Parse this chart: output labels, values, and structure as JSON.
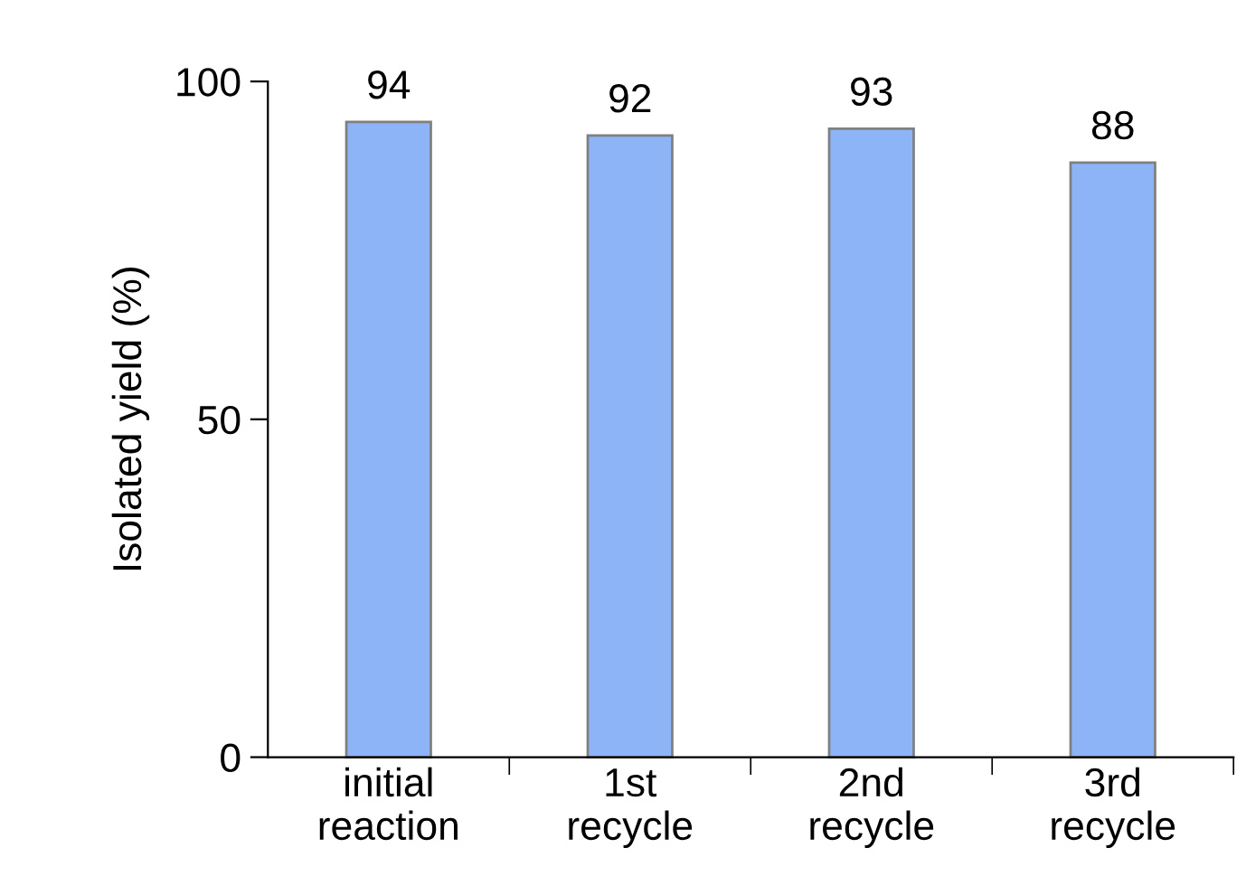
{
  "chart_data": {
    "type": "bar",
    "ylabel": "Isolated yield (%)",
    "categories": [
      "initial\nreaction",
      "1st\nrecycle",
      "2nd\nrecycle",
      "3rd\nrecycle"
    ],
    "values": [
      94,
      92,
      93,
      88
    ],
    "color": "#8db4f6",
    "ylim": [
      0,
      100
    ],
    "yticks": [
      0,
      50,
      100
    ],
    "grid": false,
    "data_labels": true
  }
}
